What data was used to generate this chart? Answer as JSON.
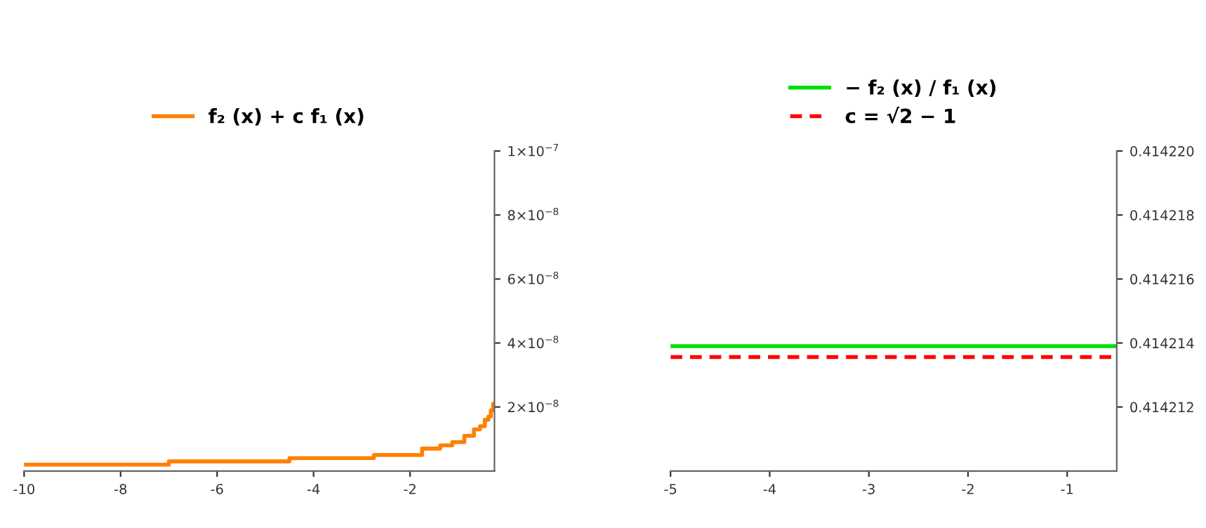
{
  "chart_data": [
    {
      "type": "step",
      "xlim": [
        -10,
        -0.25
      ],
      "ylim": [
        0,
        1e-07
      ],
      "xticks": [
        -10,
        -8,
        -6,
        -4,
        -2
      ],
      "yticks": [
        {
          "value": 2e-08,
          "label": "2×10$^{−8}$"
        },
        {
          "value": 4e-08,
          "label": "4×10$^{−8}$"
        },
        {
          "value": 6e-08,
          "label": "6×10$^{−8}$"
        },
        {
          "value": 8e-08,
          "label": "8×10$^{−8}$"
        },
        {
          "value": 1e-07,
          "label": "1×10$^{−7}$"
        }
      ],
      "legend": "top",
      "grid": false,
      "x": [
        -10,
        -8,
        -6,
        -5,
        -4,
        -3,
        -2.5,
        -2,
        -1.5,
        -1.25,
        -1,
        -0.75,
        -0.6,
        -0.5,
        -0.4,
        -0.35,
        -0.3,
        -0.25
      ],
      "series": [
        {
          "name": "f₂ (x) + c f₁ (x)",
          "color": "#ff8000",
          "values": [
            2e-09,
            2e-09,
            3e-09,
            3e-09,
            4e-09,
            4e-09,
            5e-09,
            5e-09,
            7e-09,
            8e-09,
            9e-09,
            1.1e-08,
            1.3e-08,
            1.4e-08,
            1.6e-08,
            1.7e-08,
            1.9e-08,
            2.1e-08
          ]
        }
      ]
    },
    {
      "type": "line",
      "xlim": [
        -5,
        -0.5
      ],
      "ylim": [
        0.41421,
        0.41422
      ],
      "xticks": [
        -5,
        -4,
        -3,
        -2,
        -1
      ],
      "yticks": [
        {
          "value": 0.414212,
          "label": "0.414212"
        },
        {
          "value": 0.414214,
          "label": "0.414214"
        },
        {
          "value": 0.414216,
          "label": "0.414216"
        },
        {
          "value": 0.414218,
          "label": "0.414218"
        },
        {
          "value": 0.41422,
          "label": "0.414220"
        }
      ],
      "legend": "top",
      "grid": false,
      "x": [
        -5,
        -0.5
      ],
      "series": [
        {
          "name": "− f₂ (x) / f₁ (x)",
          "color": "#00e000",
          "values": [
            0.4142139,
            0.4142139
          ]
        },
        {
          "name": "c = √2 − 1",
          "color": "#ff0000",
          "line_style": "dashed",
          "values": [
            0.41421356,
            0.41421356
          ]
        }
      ]
    }
  ]
}
